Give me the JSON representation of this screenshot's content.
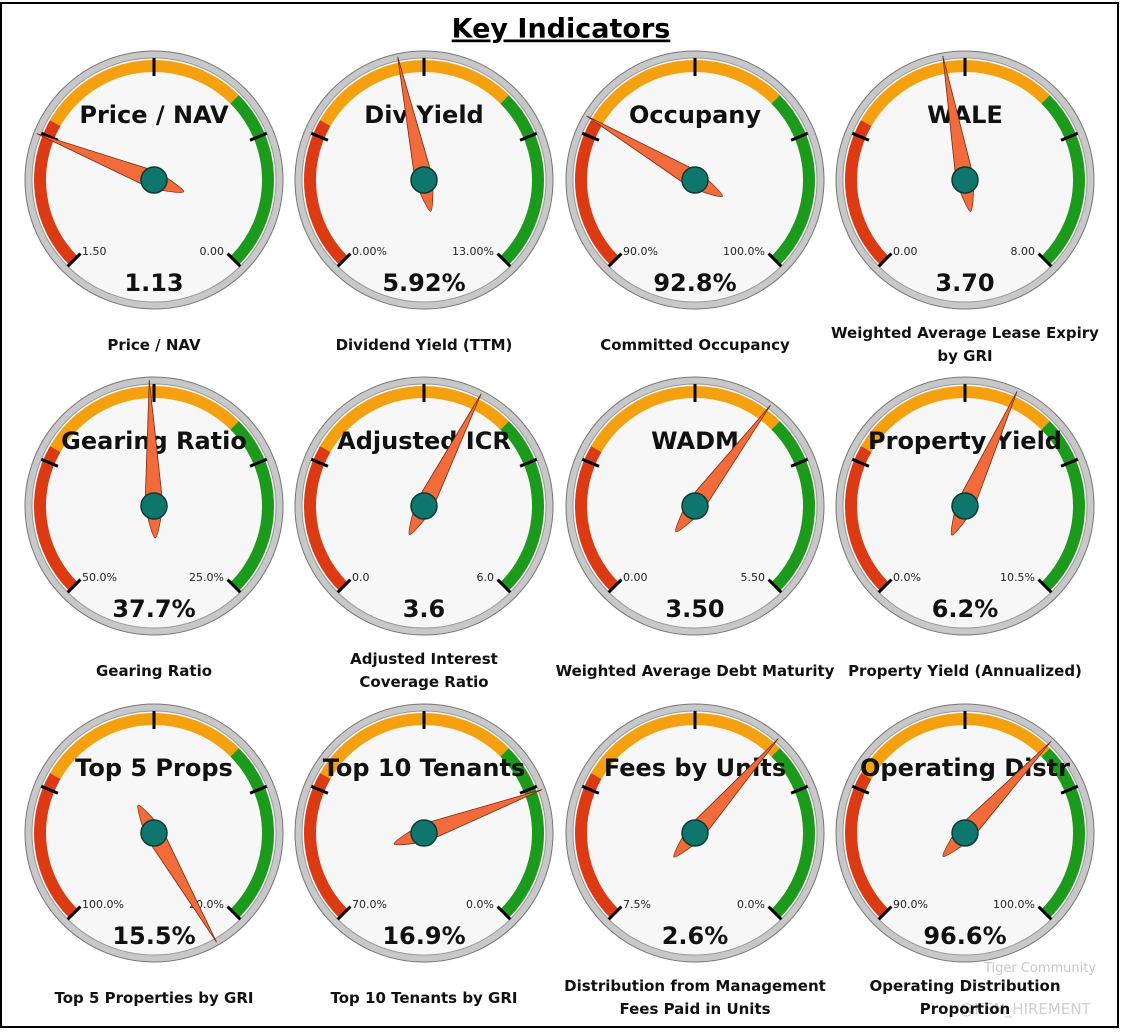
{
  "header": {
    "title": "Key Indicators"
  },
  "gauges": [
    {
      "title": "Price / NAV",
      "min": {
        "value": 1.5,
        "label": "1.50"
      },
      "max": {
        "value": 0,
        "label": "0.00"
      },
      "value": {
        "value": 1.13,
        "label": "1.13"
      },
      "caption": "Price / NAV"
    },
    {
      "title": "Div Yield",
      "min": {
        "value": 0,
        "label": "0.00%"
      },
      "max": {
        "value": 13,
        "label": "13.00%"
      },
      "value": {
        "value": 5.92,
        "label": "5.92%"
      },
      "caption": "Dividend Yield (TTM)"
    },
    {
      "title": "Occupany",
      "min": {
        "value": 90,
        "label": "90.0%"
      },
      "max": {
        "value": 100,
        "label": "100.0%"
      },
      "value": {
        "value": 92.8,
        "label": "92.8%"
      },
      "caption": "Committed Occupancy"
    },
    {
      "title": "WALE",
      "min": {
        "value": 0,
        "label": "0.00"
      },
      "max": {
        "value": 8,
        "label": "8.00"
      },
      "value": {
        "value": 3.7,
        "label": "3.70"
      },
      "caption": "Weighted Average Lease Expiry by GRI"
    },
    {
      "title": "Gearing Ratio",
      "min": {
        "value": 50,
        "label": "50.0%"
      },
      "max": {
        "value": 25,
        "label": "25.0%"
      },
      "value": {
        "value": 37.7,
        "label": "37.7%"
      },
      "caption": "Gearing Ratio"
    },
    {
      "title": "Adjusted ICR",
      "min": {
        "value": 0,
        "label": "0.0"
      },
      "max": {
        "value": 6,
        "label": "6.0"
      },
      "value": {
        "value": 3.6,
        "label": "3.6"
      },
      "caption": "Adjusted Interest Coverage Ratio"
    },
    {
      "title": "WADM",
      "min": {
        "value": 0,
        "label": "0.00"
      },
      "max": {
        "value": 5.5,
        "label": "5.50"
      },
      "value": {
        "value": 3.5,
        "label": "3.50"
      },
      "caption": "Weighted Average Debt Maturity"
    },
    {
      "title": "Property Yield",
      "min": {
        "value": 0,
        "label": "0.0%"
      },
      "max": {
        "value": 10.5,
        "label": "10.5%"
      },
      "value": {
        "value": 6.2,
        "label": "6.2%"
      },
      "caption": "Property Yield (Annualized)"
    },
    {
      "title": "Top 5 Props",
      "min": {
        "value": 100,
        "label": "100.0%"
      },
      "max": {
        "value": 20,
        "label": "20.0%"
      },
      "value": {
        "value": 15.5,
        "label": "15.5%"
      },
      "caption": "Top 5 Properties by GRI"
    },
    {
      "title": "Top 10 Tenants",
      "min": {
        "value": 70,
        "label": "70.0%"
      },
      "max": {
        "value": 0,
        "label": "0.0%"
      },
      "value": {
        "value": 16.9,
        "label": "16.9%"
      },
      "caption": "Top 10 Tenants by GRI"
    },
    {
      "title": "Fees by Units",
      "min": {
        "value": 7.5,
        "label": "7.5%"
      },
      "max": {
        "value": 0,
        "label": "0.0%"
      },
      "value": {
        "value": 2.6,
        "label": "2.6%"
      },
      "caption": "Distribution from Management Fees Paid in Units"
    },
    {
      "title": "Operating Distr",
      "min": {
        "value": 90,
        "label": "90.0%"
      },
      "max": {
        "value": 100,
        "label": "100.0%"
      },
      "value": {
        "value": 96.6,
        "label": "96.6%"
      },
      "caption": "Operating Distribution Proportion"
    }
  ],
  "watermark": {
    "brand": "Tiger Community",
    "handle": "@KEN_HIREMENT"
  }
}
